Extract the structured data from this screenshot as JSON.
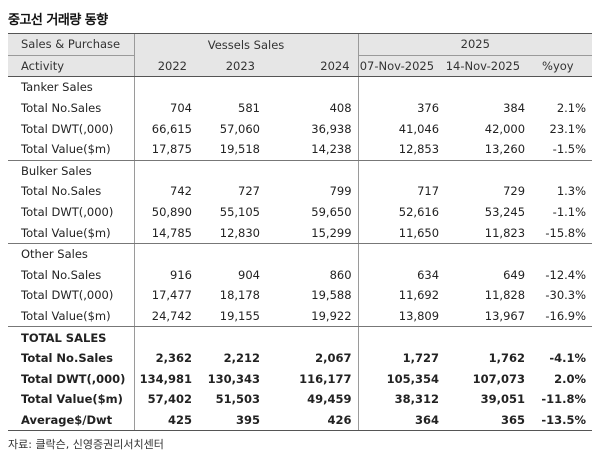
{
  "title": "중고선 거래량 동향",
  "header": {
    "row1": {
      "label": "Sales & Purchase",
      "group1": "Vessels Sales",
      "group2": "2025"
    },
    "row2": {
      "label": "Activity",
      "cols": [
        "2022",
        "2023",
        "2024",
        "07-Nov-2025",
        "14-Nov-2025",
        "%yoy"
      ]
    }
  },
  "sections": [
    {
      "name": "Tanker Sales",
      "rows": [
        {
          "label": "Total No.Sales",
          "values": [
            "704",
            "581",
            "408",
            "376",
            "384",
            "2.1%"
          ]
        },
        {
          "label": "Total DWT(,000)",
          "values": [
            "66,615",
            "57,060",
            "36,938",
            "41,046",
            "42,000",
            "23.1%"
          ]
        },
        {
          "label": "Total Value($m)",
          "values": [
            "17,875",
            "19,518",
            "14,238",
            "12,853",
            "13,260",
            "-1.5%"
          ]
        }
      ]
    },
    {
      "name": "Bulker Sales",
      "rows": [
        {
          "label": "Total No.Sales",
          "values": [
            "742",
            "727",
            "799",
            "717",
            "729",
            "1.3%"
          ]
        },
        {
          "label": "Total DWT(,000)",
          "values": [
            "50,890",
            "55,105",
            "59,650",
            "52,616",
            "53,245",
            "-1.1%"
          ]
        },
        {
          "label": "Total Value($m)",
          "values": [
            "14,785",
            "12,830",
            "15,299",
            "11,650",
            "11,823",
            "-15.8%"
          ]
        }
      ]
    },
    {
      "name": "Other Sales",
      "rows": [
        {
          "label": "Total No.Sales",
          "values": [
            "916",
            "904",
            "860",
            "634",
            "649",
            "-12.4%"
          ]
        },
        {
          "label": "Total DWT(,000)",
          "values": [
            "17,477",
            "18,178",
            "19,588",
            "11,692",
            "11,828",
            "-30.3%"
          ]
        },
        {
          "label": "Total Value($m)",
          "values": [
            "24,742",
            "19,155",
            "19,922",
            "13,809",
            "13,967",
            "-16.9%"
          ]
        }
      ]
    },
    {
      "name": "TOTAL SALES",
      "rows": [
        {
          "label": "Total No.Sales",
          "values": [
            "2,362",
            "2,212",
            "2,067",
            "1,727",
            "1,762",
            "-4.1%"
          ]
        },
        {
          "label": "Total DWT(,000)",
          "values": [
            "134,981",
            "130,343",
            "116,177",
            "105,354",
            "107,073",
            "2.0%"
          ]
        },
        {
          "label": "Total Value($m)",
          "values": [
            "57,402",
            "51,503",
            "49,459",
            "38,312",
            "39,051",
            "-11.8%"
          ]
        },
        {
          "label": "Average$/Dwt",
          "values": [
            "425",
            "395",
            "426",
            "364",
            "365",
            "-13.5%"
          ]
        }
      ]
    }
  ],
  "source": "자료: 클락슨, 신영증권리서치센터"
}
